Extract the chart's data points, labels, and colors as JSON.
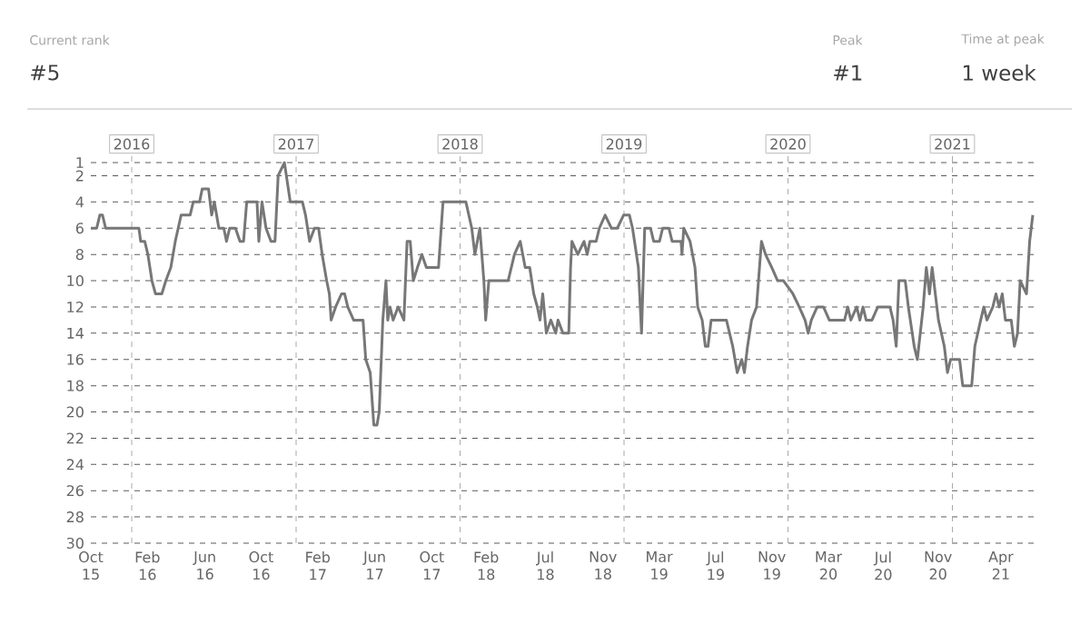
{
  "chart_data": {
    "type": "line",
    "annotations": [
      "Current rank",
      "#5",
      "Peak",
      "#1",
      "Time at peak",
      "1 week"
    ],
    "x": [
      "2015-10-02",
      "2015-10-15",
      "2015-10-22",
      "2015-10-28",
      "2015-11-04",
      "2016-01-17",
      "2016-01-21",
      "2016-01-30",
      "2016-02-06",
      "2016-02-15",
      "2016-02-23",
      "2016-03-08",
      "2016-03-17",
      "2016-03-28",
      "2016-04-07",
      "2016-04-20",
      "2016-05-10",
      "2016-05-17",
      "2016-05-31",
      "2016-06-06",
      "2016-06-20",
      "2016-06-27",
      "2016-07-03",
      "2016-07-13",
      "2016-07-24",
      "2016-07-30",
      "2016-08-06",
      "2016-08-19",
      "2016-08-29",
      "2016-09-06",
      "2016-09-13",
      "2016-10-06",
      "2016-10-10",
      "2016-10-17",
      "2016-10-26",
      "2016-11-06",
      "2016-11-15",
      "2016-11-22",
      "2016-12-06",
      "2016-12-19",
      "2017-01-15",
      "2017-01-22",
      "2017-01-31",
      "2017-02-11",
      "2017-02-20",
      "2017-02-28",
      "2017-03-10",
      "2017-03-16",
      "2017-03-20",
      "2017-03-30",
      "2017-04-12",
      "2017-04-19",
      "2017-04-26",
      "2017-05-09",
      "2017-05-30",
      "2017-06-05",
      "2017-06-15",
      "2017-06-23",
      "2017-06-30",
      "2017-07-05",
      "2017-07-13",
      "2017-07-20",
      "2017-07-24",
      "2017-07-29",
      "2017-08-05",
      "2017-08-16",
      "2017-08-29",
      "2017-09-05",
      "2017-09-12",
      "2017-09-19",
      "2017-09-28",
      "2017-10-08",
      "2017-10-18",
      "2017-11-14",
      "2017-11-24",
      "2018-01-14",
      "2018-01-27",
      "2018-02-03",
      "2018-02-14",
      "2018-02-23",
      "2018-02-27",
      "2018-03-06",
      "2018-04-18",
      "2018-05-02",
      "2018-05-15",
      "2018-05-26",
      "2018-06-05",
      "2018-06-14",
      "2018-06-22",
      "2018-06-28",
      "2018-07-04",
      "2018-07-12",
      "2018-07-22",
      "2018-08-02",
      "2018-08-07",
      "2018-08-18",
      "2018-08-25",
      "2018-08-31",
      "2018-09-04",
      "2018-09-07",
      "2018-09-20",
      "2018-10-04",
      "2018-10-11",
      "2018-10-17",
      "2018-10-31",
      "2018-11-07",
      "2018-11-20",
      "2018-12-04",
      "2018-12-17",
      "2018-12-31",
      "2019-01-13",
      "2019-01-20",
      "2019-02-02",
      "2019-02-09",
      "2019-02-16",
      "2019-03-01",
      "2019-03-08",
      "2019-03-21",
      "2019-03-28",
      "2019-04-11",
      "2019-04-18",
      "2019-05-08",
      "2019-05-10",
      "2019-05-14",
      "2019-05-28",
      "2019-06-08",
      "2019-06-14",
      "2019-06-24",
      "2019-07-01",
      "2019-07-07",
      "2019-07-14",
      "2019-08-17",
      "2019-08-31",
      "2019-09-10",
      "2019-09-20",
      "2019-09-26",
      "2019-10-03",
      "2019-10-12",
      "2019-10-23",
      "2019-11-03",
      "2019-11-12",
      "2019-11-26",
      "2019-12-09",
      "2019-12-22",
      "2020-01-12",
      "2020-01-26",
      "2020-02-08",
      "2020-02-15",
      "2020-02-22",
      "2020-03-06",
      "2020-03-20",
      "2020-04-02",
      "2020-05-06",
      "2020-05-13",
      "2020-05-20",
      "2020-06-02",
      "2020-06-09",
      "2020-06-16",
      "2020-06-23",
      "2020-07-06",
      "2020-07-19",
      "2020-08-15",
      "2020-08-22",
      "2020-08-29",
      "2020-09-04",
      "2020-09-18",
      "2020-09-25",
      "2020-10-08",
      "2020-10-15",
      "2020-10-28",
      "2020-11-04",
      "2020-11-11",
      "2020-11-17",
      "2020-11-24",
      "2020-12-01",
      "2020-12-14",
      "2020-12-21",
      "2020-12-28",
      "2021-01-17",
      "2021-01-24",
      "2021-02-13",
      "2021-02-20",
      "2021-03-05",
      "2021-03-12",
      "2021-03-19",
      "2021-04-01",
      "2021-04-08",
      "2021-04-15",
      "2021-04-22",
      "2021-04-29",
      "2021-05-12",
      "2021-05-19",
      "2021-05-26",
      "2021-06-01",
      "2021-06-15",
      "2021-06-22",
      "2021-06-29"
    ],
    "series": [
      {
        "color": "#777777",
        "values": [
          6,
          6,
          5,
          5,
          6,
          6,
          7,
          7,
          8,
          10,
          11,
          11,
          10,
          9,
          7,
          5,
          5,
          4,
          4,
          3,
          3,
          5,
          4,
          6,
          6,
          7,
          6,
          6,
          7,
          7,
          4,
          4,
          7,
          4,
          6,
          7,
          7,
          2,
          1,
          4,
          4,
          5,
          7,
          6,
          6,
          8,
          10,
          11,
          13,
          12,
          11,
          11,
          12,
          13,
          13,
          16,
          17,
          21,
          21,
          20,
          13,
          10,
          13,
          12,
          13,
          12,
          13,
          7,
          7,
          10,
          9,
          8,
          9,
          9,
          4,
          4,
          6,
          8,
          6,
          10,
          13,
          10,
          10,
          8,
          7,
          9,
          9,
          11,
          12,
          13,
          11,
          14,
          13,
          14,
          13,
          14,
          14,
          14,
          9,
          7,
          8,
          7,
          8,
          7,
          7,
          6,
          5,
          6,
          6,
          5,
          5,
          6,
          9,
          14,
          6,
          6,
          7,
          7,
          6,
          6,
          7,
          7,
          8,
          6,
          7,
          9,
          12,
          13,
          15,
          15,
          13,
          13,
          15,
          17,
          16,
          17,
          15,
          13,
          12,
          7,
          8,
          9,
          10,
          10,
          11,
          12,
          13,
          14,
          13,
          12,
          12,
          13,
          13,
          12,
          13,
          12,
          13,
          12,
          13,
          13,
          12,
          12,
          13,
          15,
          10,
          10,
          12,
          15,
          16,
          12,
          9,
          11,
          9,
          11,
          13,
          15,
          17,
          16,
          16,
          18,
          18,
          15,
          13,
          12,
          13,
          12,
          11,
          12,
          11,
          13,
          13,
          15,
          14,
          10,
          11,
          7,
          5
        ]
      }
    ],
    "xlim": [
      "2015-10-02",
      "2021-07-01"
    ],
    "xticks": [
      {
        "value": "2015-10-02",
        "label": "Oct 15"
      },
      {
        "value": "2016-02-05",
        "label": "Feb 16"
      },
      {
        "value": "2016-06-12",
        "label": "Jun 16"
      },
      {
        "value": "2016-10-15",
        "label": "Oct 16"
      },
      {
        "value": "2017-02-18",
        "label": "Feb 17"
      },
      {
        "value": "2017-06-25",
        "label": "Jun 17"
      },
      {
        "value": "2017-10-30",
        "label": "Oct 17"
      },
      {
        "value": "2018-02-28",
        "label": "Feb 18"
      },
      {
        "value": "2018-07-10",
        "label": "Jul 18"
      },
      {
        "value": "2018-11-15",
        "label": "Nov 18"
      },
      {
        "value": "2019-03-20",
        "label": "Mar 19"
      },
      {
        "value": "2019-07-24",
        "label": "Jul 19"
      },
      {
        "value": "2019-11-26",
        "label": "Nov 19"
      },
      {
        "value": "2020-03-31",
        "label": "Mar 20"
      },
      {
        "value": "2020-07-31",
        "label": "Jul 20"
      },
      {
        "value": "2020-11-30",
        "label": "Nov 20"
      },
      {
        "value": "2021-04-19",
        "label": "Apr 21"
      }
    ],
    "ylim": [
      30,
      1
    ],
    "yticks": [
      1,
      2,
      4,
      6,
      8,
      10,
      12,
      14,
      16,
      18,
      20,
      22,
      24,
      26,
      28,
      30
    ],
    "grid": "y",
    "ref_lines": [
      {
        "axis": "x",
        "value": "2016-01-01",
        "label": "2016",
        "color": "#aaaaaa",
        "line_style": "dashed"
      },
      {
        "axis": "x",
        "value": "2017-01-01",
        "label": "2017",
        "color": "#aaaaaa",
        "line_style": "dashed"
      },
      {
        "axis": "x",
        "value": "2018-01-01",
        "label": "2018",
        "color": "#aaaaaa",
        "line_style": "dashed"
      },
      {
        "axis": "x",
        "value": "2019-01-01",
        "label": "2019",
        "color": "#aaaaaa",
        "line_style": "dashed"
      },
      {
        "axis": "x",
        "value": "2020-01-01",
        "label": "2020",
        "color": "#aaaaaa",
        "line_style": "dashed"
      },
      {
        "axis": "x",
        "value": "2021-01-01",
        "label": "2021",
        "color": "#aaaaaa",
        "line_style": "dashed"
      }
    ]
  }
}
